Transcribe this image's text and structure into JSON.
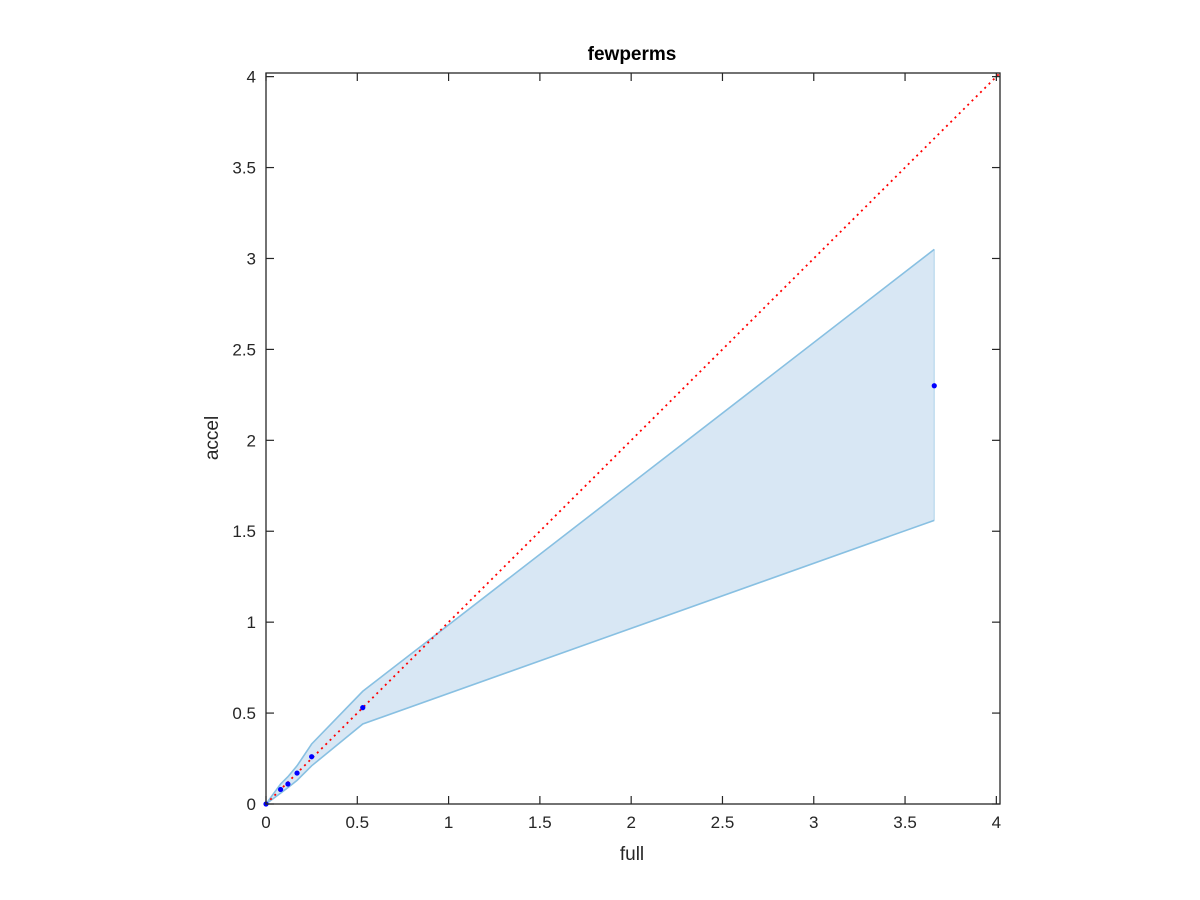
{
  "chart_data": {
    "type": "scatter",
    "title": "fewperms",
    "xlabel": "full",
    "ylabel": "accel",
    "xlim": [
      0,
      4.02
    ],
    "ylim": [
      0,
      4.02
    ],
    "xticks": [
      "0",
      "0.5",
      "1",
      "1.5",
      "2",
      "2.5",
      "3",
      "3.5",
      "4"
    ],
    "yticks": [
      "0",
      "0.5",
      "1",
      "1.5",
      "2",
      "2.5",
      "3",
      "3.5",
      "4"
    ],
    "grid": false,
    "legend": "none",
    "points": {
      "x": [
        0.0,
        0.08,
        0.12,
        0.17,
        0.25,
        0.53,
        3.66
      ],
      "y": [
        0.0,
        0.08,
        0.11,
        0.17,
        0.26,
        0.53,
        2.3
      ]
    },
    "band": {
      "x": [
        0.0,
        0.08,
        0.12,
        0.17,
        0.25,
        0.53,
        3.66
      ],
      "upper": [
        0.0,
        0.11,
        0.15,
        0.21,
        0.33,
        0.62,
        3.05
      ],
      "lower": [
        0.0,
        0.06,
        0.09,
        0.13,
        0.21,
        0.44,
        1.56
      ]
    },
    "reference_line": {
      "x": [
        0,
        4.02
      ],
      "y": [
        0,
        4.02
      ],
      "style": "dotted"
    },
    "colors": {
      "points": "#0000ff",
      "band_fill": "#d8e7f4",
      "band_edge": "#88c0e2",
      "reference_line": "#ff0000",
      "axes": "#262626"
    }
  }
}
